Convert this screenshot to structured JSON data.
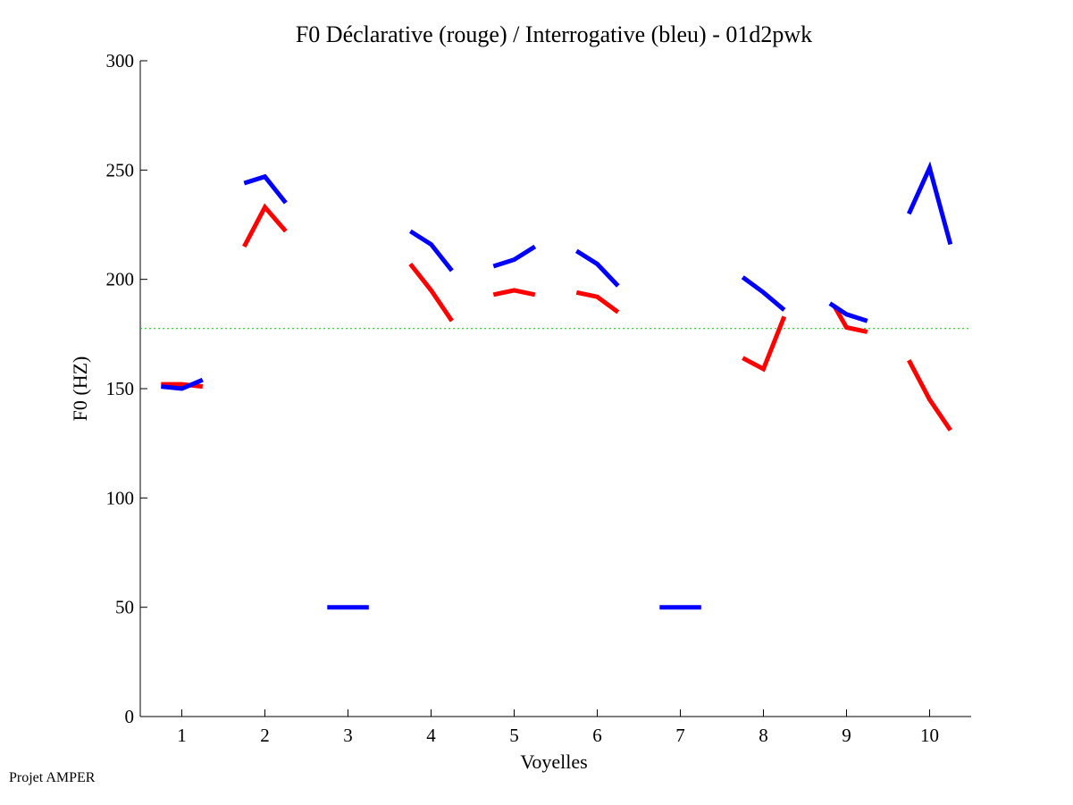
{
  "chart_data": {
    "type": "line",
    "title": "F0 Déclarative (rouge) / Interrogative (bleu) - 01d2pwk",
    "xlabel": "Voyelles",
    "ylabel": "F0 (HZ)",
    "xlim": [
      0.5,
      10.5
    ],
    "ylim": [
      0,
      300
    ],
    "x_ticks": [
      1,
      2,
      3,
      4,
      5,
      6,
      7,
      8,
      9,
      10
    ],
    "y_ticks": [
      0,
      50,
      100,
      150,
      200,
      250,
      300
    ],
    "reference_line": {
      "y": 177.5,
      "color": "#00cc00",
      "style": "dotted"
    },
    "series": [
      {
        "color": "#ff0000",
        "segments": [
          {
            "x": [
              0.75,
              1.0,
              1.25
            ],
            "y": [
              152,
              152,
              151
            ]
          },
          {
            "x": [
              1.75,
              2.0,
              2.25
            ],
            "y": [
              215,
              233,
              222
            ]
          },
          {
            "x": [
              3.75,
              4.0,
              4.25
            ],
            "y": [
              207,
              195,
              181
            ]
          },
          {
            "x": [
              4.75,
              5.0,
              5.25
            ],
            "y": [
              193,
              195,
              193
            ]
          },
          {
            "x": [
              5.75,
              6.0,
              6.25
            ],
            "y": [
              194,
              192,
              185
            ]
          },
          {
            "x": [
              7.75,
              8.0,
              8.25
            ],
            "y": [
              164,
              159,
              183
            ]
          },
          {
            "x": [
              8.85,
              9.0,
              9.25
            ],
            "y": [
              188,
              178,
              176
            ]
          },
          {
            "x": [
              9.75,
              10.0,
              10.25
            ],
            "y": [
              163,
              145,
              131
            ]
          }
        ]
      },
      {
        "color": "#0000ff",
        "segments": [
          {
            "x": [
              0.75,
              1.0,
              1.25
            ],
            "y": [
              151,
              150,
              154
            ]
          },
          {
            "x": [
              1.75,
              2.0,
              2.25
            ],
            "y": [
              244,
              247,
              235
            ]
          },
          {
            "x": [
              2.75,
              3.0,
              3.25
            ],
            "y": [
              50,
              50,
              50
            ]
          },
          {
            "x": [
              3.75,
              4.0,
              4.25
            ],
            "y": [
              222,
              216,
              204
            ]
          },
          {
            "x": [
              4.75,
              5.0,
              5.25
            ],
            "y": [
              206,
              209,
              215
            ]
          },
          {
            "x": [
              5.75,
              6.0,
              6.25
            ],
            "y": [
              213,
              207,
              197
            ]
          },
          {
            "x": [
              6.75,
              7.0,
              7.25
            ],
            "y": [
              50,
              50,
              50
            ]
          },
          {
            "x": [
              7.75,
              8.0,
              8.25
            ],
            "y": [
              201,
              194,
              186
            ]
          },
          {
            "x": [
              8.8,
              9.0,
              9.25
            ],
            "y": [
              189,
              184,
              181
            ]
          },
          {
            "x": [
              9.75,
              10.0,
              10.25
            ],
            "y": [
              230,
              251,
              216
            ]
          }
        ]
      }
    ]
  },
  "footer": {
    "text": "Projet AMPER"
  }
}
